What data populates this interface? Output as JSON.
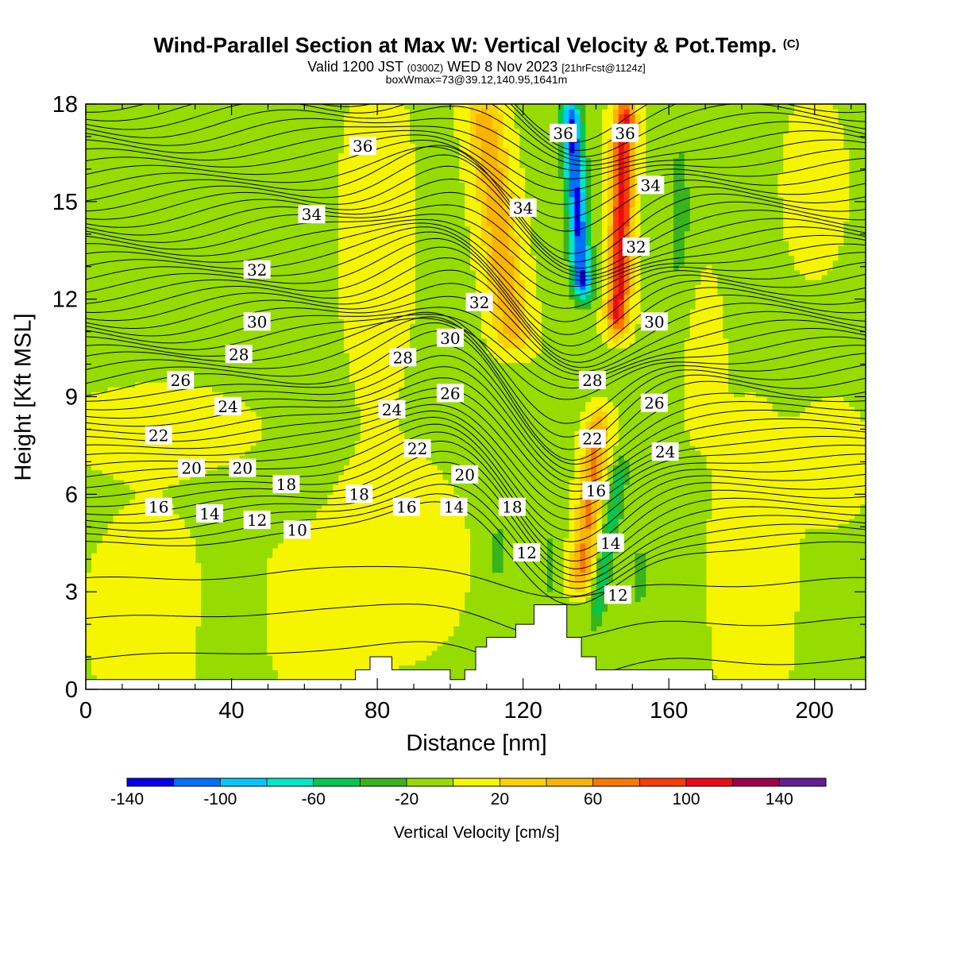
{
  "header": {
    "title": "Wind-Parallel Section at Max W: Vertical Velocity & Pot.Temp.",
    "copyright": "(C)",
    "valid_prefix": "Valid 1200 JST",
    "valid_utc": "(0300Z)",
    "valid_date": "WED 8 Nov 2023",
    "forecast": "[21hrFcst@1124z]",
    "boxwmax": "boxWmax=73@39.12,140.95,1641m"
  },
  "chart_data": {
    "type": "heatmap",
    "xlabel": "Distance [nm]",
    "ylabel": "Height [Kft MSL]",
    "xlim": [
      0,
      214
    ],
    "ylim": [
      0,
      18
    ],
    "x_ticks": [
      "0",
      "40",
      "80",
      "120",
      "160",
      "200"
    ],
    "y_ticks": [
      "0",
      "3",
      "6",
      "9",
      "12",
      "15",
      "18"
    ],
    "colorbar": {
      "label": "Vertical Velocity [cm/s]",
      "tick_labels": [
        "-140",
        "-100",
        "-60",
        "-20",
        "20",
        "60",
        "100",
        "140"
      ],
      "bounds": [
        -140,
        -120,
        -100,
        -80,
        -60,
        -40,
        -20,
        0,
        20,
        40,
        60,
        80,
        100,
        120,
        140,
        160
      ],
      "colors": [
        "#0000ee",
        "#0070ff",
        "#00c8ff",
        "#00e6c8",
        "#00c850",
        "#38b41c",
        "#96dc00",
        "#f5f500",
        "#fad200",
        "#fab400",
        "#fa7800",
        "#fa3c00",
        "#ee0a14",
        "#a0004a",
        "#641e96"
      ]
    },
    "theta_contour_labels": [
      {
        "text": "36",
        "x": 76,
        "y": 16.7
      },
      {
        "text": "34",
        "x": 62,
        "y": 14.6
      },
      {
        "text": "32",
        "x": 47,
        "y": 12.9
      },
      {
        "text": "30",
        "x": 47,
        "y": 11.3
      },
      {
        "text": "28",
        "x": 42,
        "y": 10.3
      },
      {
        "text": "26",
        "x": 26,
        "y": 9.5
      },
      {
        "text": "24",
        "x": 39,
        "y": 8.7
      },
      {
        "text": "22",
        "x": 20,
        "y": 7.8
      },
      {
        "text": "20",
        "x": 29,
        "y": 6.8
      },
      {
        "text": "20",
        "x": 43,
        "y": 6.8
      },
      {
        "text": "18",
        "x": 55,
        "y": 6.3
      },
      {
        "text": "16",
        "x": 20,
        "y": 5.6
      },
      {
        "text": "14",
        "x": 34,
        "y": 5.4
      },
      {
        "text": "12",
        "x": 47,
        "y": 5.2
      },
      {
        "text": "10",
        "x": 58,
        "y": 4.9
      },
      {
        "text": "18",
        "x": 75,
        "y": 6.0
      },
      {
        "text": "16",
        "x": 88,
        "y": 5.6
      },
      {
        "text": "14",
        "x": 101,
        "y": 5.6
      },
      {
        "text": "22",
        "x": 91,
        "y": 7.4
      },
      {
        "text": "20",
        "x": 104,
        "y": 6.6
      },
      {
        "text": "24",
        "x": 84,
        "y": 8.6
      },
      {
        "text": "26",
        "x": 100,
        "y": 9.1
      },
      {
        "text": "28",
        "x": 87,
        "y": 10.2
      },
      {
        "text": "30",
        "x": 100,
        "y": 10.8
      },
      {
        "text": "32",
        "x": 108,
        "y": 11.9
      },
      {
        "text": "34",
        "x": 120,
        "y": 14.8
      },
      {
        "text": "36",
        "x": 131,
        "y": 17.1
      },
      {
        "text": "36",
        "x": 148,
        "y": 17.1
      },
      {
        "text": "34",
        "x": 155,
        "y": 15.5
      },
      {
        "text": "32",
        "x": 151,
        "y": 13.6
      },
      {
        "text": "30",
        "x": 156,
        "y": 11.3
      },
      {
        "text": "28",
        "x": 139,
        "y": 9.5
      },
      {
        "text": "26",
        "x": 156,
        "y": 8.8
      },
      {
        "text": "24",
        "x": 159,
        "y": 7.3
      },
      {
        "text": "22",
        "x": 139,
        "y": 7.7
      },
      {
        "text": "18",
        "x": 117,
        "y": 5.6
      },
      {
        "text": "16",
        "x": 140,
        "y": 6.1
      },
      {
        "text": "14",
        "x": 144,
        "y": 4.5
      },
      {
        "text": "12",
        "x": 121,
        "y": 4.2
      },
      {
        "text": "12",
        "x": 146,
        "y": 2.9
      }
    ],
    "terrain": [
      [
        0,
        0.3
      ],
      [
        74,
        0.3
      ],
      [
        74,
        0.6
      ],
      [
        78,
        0.6
      ],
      [
        78,
        1.0
      ],
      [
        84,
        1.0
      ],
      [
        84,
        0.6
      ],
      [
        100,
        0.6
      ],
      [
        100,
        0.3
      ],
      [
        104,
        0.3
      ],
      [
        104,
        0.6
      ],
      [
        107,
        0.6
      ],
      [
        107,
        1.3
      ],
      [
        110,
        1.3
      ],
      [
        110,
        1.6
      ],
      [
        118,
        1.6
      ],
      [
        118,
        2.0
      ],
      [
        123,
        2.0
      ],
      [
        123,
        2.6
      ],
      [
        132,
        2.6
      ],
      [
        132,
        1.6
      ],
      [
        136,
        1.6
      ],
      [
        136,
        1.0
      ],
      [
        140,
        1.0
      ],
      [
        140,
        0.6
      ],
      [
        172,
        0.6
      ],
      [
        172,
        0.3
      ],
      [
        214,
        0.3
      ]
    ]
  }
}
